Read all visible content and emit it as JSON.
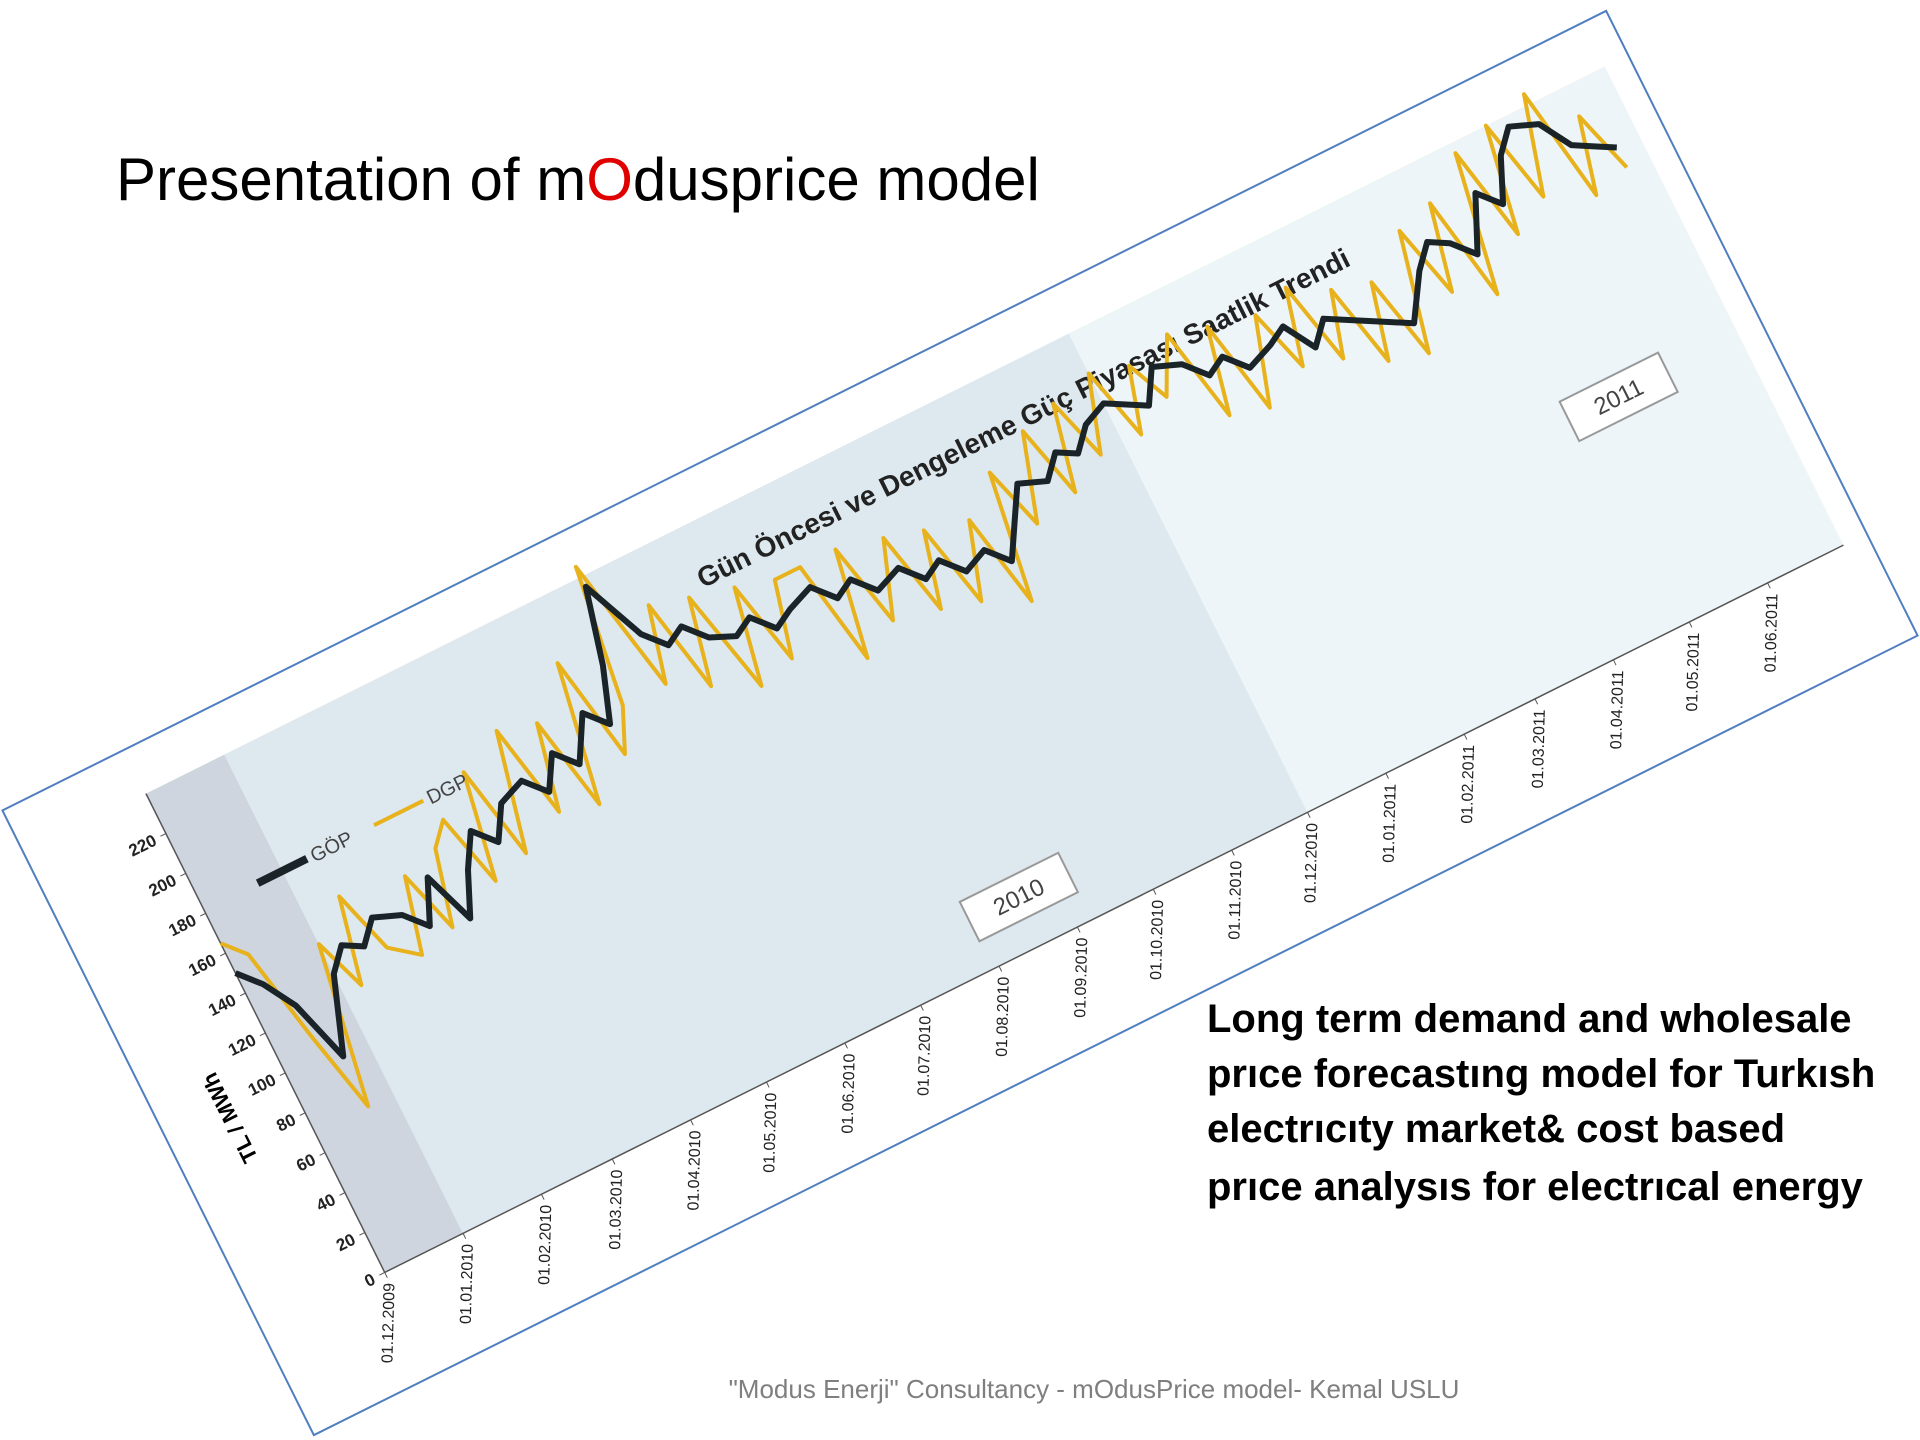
{
  "slide": {
    "title": [
      "Presentation of m",
      "O",
      "dusprice model"
    ],
    "body": [
      "Long term demand and wholesale",
      "prıce forecastıng model for Turkısh",
      "electrıcıty market& cost based",
      "prıce analysıs for electrıcal energy"
    ],
    "footer": "\"Modus Enerji\" Consultancy - mOdusPrice model- Kemal USLU"
  },
  "chart_data": {
    "type": "line",
    "title": "Gün Öncesi  ve Dengeleme Güç Piyasası Saatlik Trendi",
    "y_label": "TL / MWh",
    "annotations": [
      "2010",
      "2011"
    ],
    "x": [
      "01.12.2009",
      "08.12.2009",
      "15.12.2009",
      "22.12.2009",
      "01.01.2010",
      "08.01.2010",
      "15.01.2010",
      "22.01.2010",
      "01.02.2010",
      "08.02.2010",
      "15.02.2010",
      "22.02.2010",
      "01.03.2010",
      "08.03.2010",
      "15.03.2010",
      "22.03.2010",
      "01.04.2010",
      "08.04.2010",
      "15.04.2010",
      "22.04.2010",
      "01.05.2010",
      "08.05.2010",
      "15.05.2010",
      "22.05.2010",
      "01.06.2010",
      "08.06.2010",
      "15.06.2010",
      "22.06.2010",
      "01.07.2010",
      "08.07.2010",
      "15.07.2010",
      "22.07.2010",
      "01.08.2010",
      "08.08.2010",
      "15.08.2010",
      "22.08.2010",
      "01.09.2010",
      "08.09.2010",
      "15.09.2010",
      "22.09.2010",
      "01.10.2010",
      "08.10.2010",
      "15.10.2010",
      "22.10.2010",
      "01.11.2010",
      "08.11.2010",
      "15.11.2010",
      "22.11.2010",
      "01.12.2010",
      "08.12.2010",
      "15.12.2010",
      "22.12.2010",
      "01.01.2011",
      "08.01.2011",
      "15.01.2011",
      "22.01.2011",
      "01.02.2011",
      "08.02.2011",
      "15.02.2011",
      "22.02.2011",
      "01.03.2011",
      "08.03.2011",
      "15.03.2011",
      "22.03.2011",
      "01.04.2011",
      "08.04.2011",
      "15.04.2011",
      "22.04.2011",
      "01.05.2011",
      "08.05.2011",
      "15.05.2011",
      "22.05.2011",
      "01.06.2011",
      "08.06.2011",
      "15.06.2011",
      "22.06.2011"
    ],
    "series": [
      {
        "name": "GÖP",
        "color": "#1a2428",
        "values": [
          150,
          140,
          125,
          95,
          130,
          140,
          135,
          145,
          140,
          130,
          150,
          125,
          145,
          160,
          150,
          165,
          170,
          160,
          175,
          165,
          185,
          175,
          200,
          235,
          205,
          195,
          200,
          190,
          185,
          190,
          180,
          185,
          190,
          180,
          185,
          175,
          180,
          170,
          175,
          165,
          170,
          160,
          175,
          190,
          185,
          195,
          190,
          200,
          205,
          200,
          195,
          210,
          205,
          195,
          200,
          190,
          195,
          200,
          185,
          195,
          190,
          185,
          180,
          175,
          195,
          205,
          200,
          190,
          215,
          205,
          225,
          235,
          230,
          215,
          210,
          205
        ]
      },
      {
        "name": "DGP",
        "color": "#e8b21c",
        "values": [
          165,
          155,
          110,
          70,
          145,
          120,
          160,
          130,
          120,
          155,
          125,
          160,
          170,
          135,
          185,
          140,
          195,
          150,
          190,
          145,
          210,
          160,
          180,
          245,
          180,
          215,
          170,
          210,
          160,
          205,
          165,
          200,
          200,
          150,
          200,
          160,
          195,
          155,
          190,
          150,
          185,
          140,
          200,
          170,
          210,
          175,
          215,
          185,
          220,
          185,
          215,
          195,
          220,
          175,
          215,
          170,
          210,
          180,
          215,
          175,
          205,
          165,
          200,
          160,
          215,
          180,
          220,
          170,
          235,
          190,
          240,
          200,
          245,
          190,
          225,
          195
        ]
      }
    ],
    "xlim": [
      "01.12.2009",
      "01.07.2011"
    ],
    "xticks": [
      "01.12.2009",
      "01.01.2010",
      "01.02.2010",
      "01.03.2010",
      "01.04.2010",
      "01.05.2010",
      "01.06.2010",
      "01.07.2010",
      "01.08.2010",
      "01.09.2010",
      "01.10.2010",
      "01.11.2010",
      "01.12.2010",
      "01.01.2011",
      "01.02.2011",
      "01.03.2011",
      "01.04.2011",
      "01.05.2011",
      "01.06.2011"
    ],
    "ylim": [
      0,
      240
    ],
    "yticks": [
      0,
      20,
      40,
      60,
      80,
      100,
      120,
      140,
      160,
      180,
      200,
      220
    ],
    "regions": [
      {
        "start": "01.12.2009",
        "end": "01.01.2010",
        "color": "#cfd5df"
      },
      {
        "start": "01.01.2010",
        "end": "01.12.2010",
        "color": "#dde9ef"
      },
      {
        "start": "01.12.2010",
        "end": "01.07.2011",
        "color": "#edf5f8"
      }
    ]
  }
}
